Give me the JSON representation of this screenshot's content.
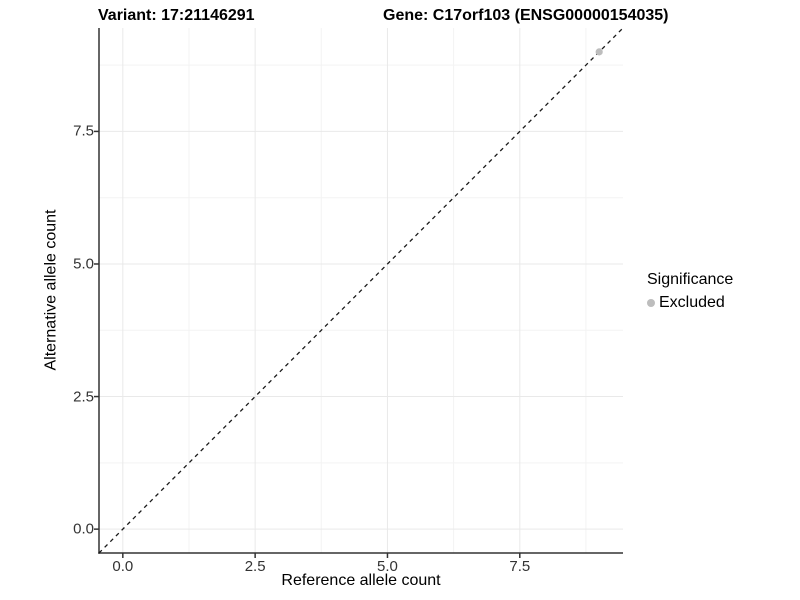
{
  "titles": {
    "variant": "Variant: 17:21146291",
    "gene": "Gene: C17orf103 (ENSG00000154035)"
  },
  "chart_data": {
    "type": "scatter",
    "title_left": "Variant: 17:21146291",
    "title_right": "Gene: C17orf103 (ENSG00000154035)",
    "xlabel": "Reference allele count",
    "ylabel": "Alternative allele count",
    "xlim": [
      -0.45,
      9.45
    ],
    "ylim": [
      -0.45,
      9.45
    ],
    "x_ticks": [
      {
        "value": 0,
        "label": "0.0"
      },
      {
        "value": 2.5,
        "label": "2.5"
      },
      {
        "value": 5,
        "label": "5.0"
      },
      {
        "value": 7.5,
        "label": "7.5"
      }
    ],
    "y_ticks": [
      {
        "value": 0,
        "label": "0.0"
      },
      {
        "value": 2.5,
        "label": "2.5"
      },
      {
        "value": 5,
        "label": "5.0"
      },
      {
        "value": 7.5,
        "label": "7.5"
      }
    ],
    "minor_tick_values": [
      1.25,
      3.75,
      6.25,
      8.75
    ],
    "grid": true,
    "reference_line": {
      "type": "identity",
      "slope": 1,
      "intercept": 0,
      "style": "dashed"
    },
    "series": [
      {
        "name": "Excluded",
        "color": "#bdbdbd",
        "points": [
          {
            "x": 9,
            "y": 9
          }
        ]
      }
    ],
    "legend": {
      "title": "Significance",
      "position": "right",
      "items": [
        {
          "label": "Excluded",
          "color": "#bdbdbd"
        }
      ]
    },
    "colors": {
      "major_grid": "#e9e9e9",
      "minor_grid": "#f3f3f3",
      "axis_line": "#333333",
      "tick_mark": "#333333",
      "reference_line": "#1a1a1a",
      "panel_background": "#ffffff"
    }
  }
}
